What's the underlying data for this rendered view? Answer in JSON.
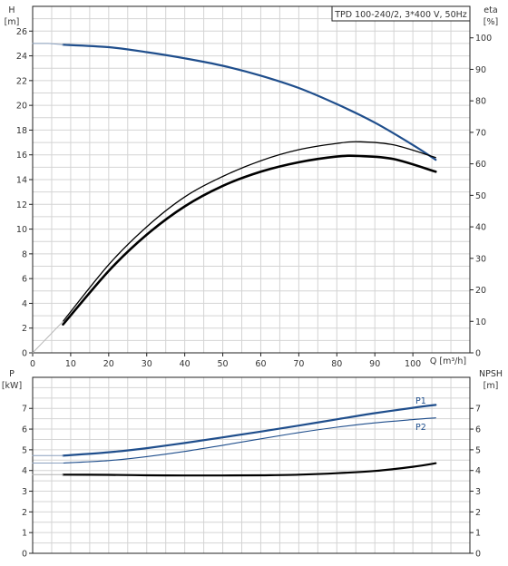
{
  "chart_data": [
    {
      "type": "line",
      "title": "TPD 100-240/2, 3*400 V, 50Hz",
      "xlabel": "Q [m³/h]",
      "xlim": [
        0,
        115
      ],
      "x_ticks": [
        "0",
        "10",
        "20",
        "30",
        "40",
        "50",
        "60",
        "70",
        "80",
        "90",
        "100"
      ],
      "y_left": {
        "label_name": "H",
        "label_unit": "[m]",
        "lim": [
          0,
          28
        ],
        "ticks": [
          "0",
          "2",
          "4",
          "6",
          "8",
          "10",
          "12",
          "14",
          "16",
          "18",
          "20",
          "22",
          "24",
          "26"
        ]
      },
      "y_right": {
        "label_name": "eta",
        "label_unit": "[%]",
        "lim": [
          0,
          110
        ],
        "ticks": [
          "0",
          "10",
          "20",
          "30",
          "40",
          "50",
          "60",
          "70",
          "80",
          "90",
          "100"
        ]
      },
      "grid": true,
      "series": [
        {
          "axis": "left",
          "color": "#1f4e8c",
          "width": 2.2,
          "x": [
            8,
            20,
            30,
            40,
            50,
            60,
            70,
            80,
            90,
            100,
            106
          ],
          "values": [
            24.9,
            24.7,
            24.3,
            23.8,
            23.2,
            22.4,
            21.4,
            20.1,
            18.6,
            16.8,
            15.6
          ]
        },
        {
          "axis": "left",
          "color": "#8aa0bf",
          "width": 1,
          "x": [
            0,
            4,
            8
          ],
          "values": [
            25.0,
            25.0,
            24.9
          ]
        },
        {
          "axis": "right",
          "color": "#000000",
          "width": 1.3,
          "x": [
            8,
            20,
            30,
            40,
            50,
            60,
            70,
            80,
            86,
            95,
            106
          ],
          "values": [
            10,
            28,
            40,
            49.5,
            56,
            61,
            64.5,
            66.5,
            67,
            66,
            62
          ]
        },
        {
          "axis": "right",
          "color": "#000000",
          "width": 2.6,
          "x": [
            8,
            20,
            30,
            40,
            50,
            60,
            70,
            80,
            86,
            95,
            106
          ],
          "values": [
            9,
            26,
            37.5,
            46.5,
            53,
            57.5,
            60.5,
            62.3,
            62.5,
            61.5,
            57.5
          ]
        },
        {
          "axis": "right",
          "color": "#b8b8b8",
          "width": 1,
          "x": [
            0,
            4,
            8
          ],
          "values": [
            0,
            5,
            10
          ]
        }
      ]
    },
    {
      "type": "line",
      "xlim": [
        0,
        115
      ],
      "y_left": {
        "label_name": "P",
        "label_unit": "[kW]",
        "lim": [
          0,
          8.5
        ],
        "ticks": [
          "0",
          "1",
          "2",
          "3",
          "4",
          "5",
          "6",
          "7"
        ]
      },
      "y_right": {
        "label_name": "NPSH",
        "label_unit": "[m]",
        "lim": [
          0,
          8.5
        ],
        "ticks": [
          "0",
          "1",
          "2",
          "3",
          "4",
          "5",
          "6",
          "7"
        ]
      },
      "grid": true,
      "series": [
        {
          "name": "P1",
          "axis": "left",
          "color": "#1f4e8c",
          "width": 2.2,
          "x": [
            8,
            20,
            30,
            40,
            50,
            60,
            70,
            80,
            90,
            100,
            106
          ],
          "values": [
            4.72,
            4.88,
            5.08,
            5.33,
            5.6,
            5.88,
            6.17,
            6.47,
            6.77,
            7.03,
            7.17
          ]
        },
        {
          "axis": "left",
          "color": "#8aa0bf",
          "width": 1,
          "x": [
            0,
            8
          ],
          "values": [
            4.72,
            4.72
          ]
        },
        {
          "name": "P2",
          "axis": "left",
          "color": "#1f4e8c",
          "width": 1.1,
          "x": [
            8,
            20,
            30,
            40,
            50,
            60,
            70,
            80,
            90,
            100,
            106
          ],
          "values": [
            4.36,
            4.48,
            4.67,
            4.92,
            5.22,
            5.53,
            5.83,
            6.09,
            6.3,
            6.46,
            6.54
          ]
        },
        {
          "axis": "left",
          "color": "#8aa0bf",
          "width": 1,
          "x": [
            0,
            8
          ],
          "values": [
            4.36,
            4.36
          ]
        },
        {
          "axis": "right",
          "color": "#000000",
          "width": 2.2,
          "x": [
            8,
            20,
            30,
            40,
            50,
            60,
            70,
            80,
            90,
            100,
            106
          ],
          "values": [
            3.8,
            3.79,
            3.77,
            3.76,
            3.76,
            3.77,
            3.8,
            3.87,
            3.98,
            4.18,
            4.35
          ]
        },
        {
          "axis": "right",
          "color": "#b0b0b0",
          "width": 1,
          "x": [
            0,
            8
          ],
          "values": [
            3.8,
            3.8
          ]
        }
      ]
    }
  ]
}
